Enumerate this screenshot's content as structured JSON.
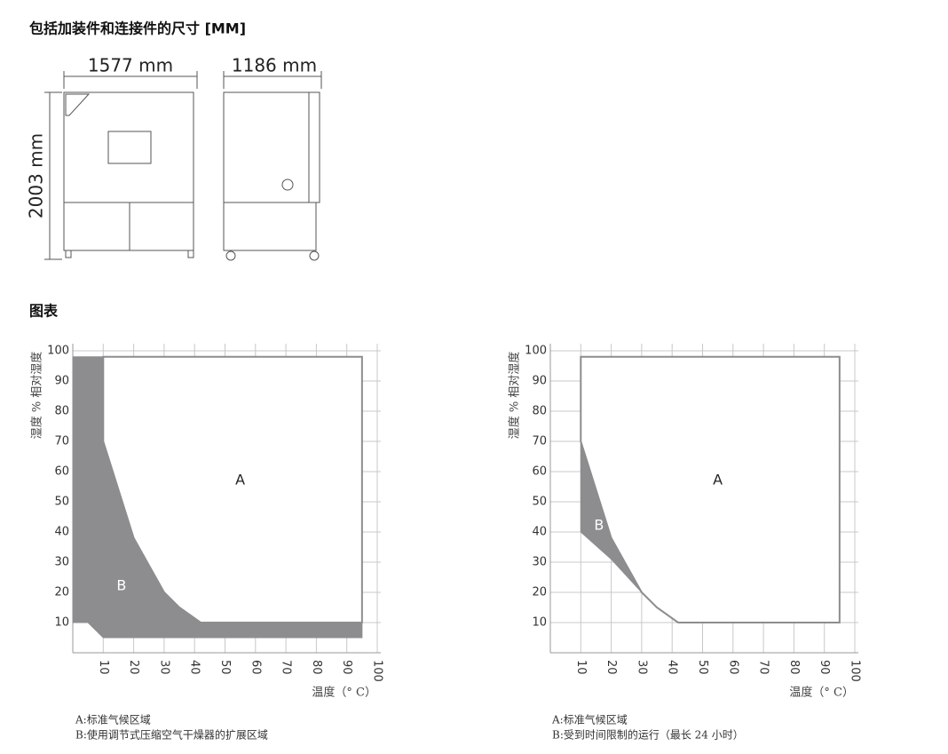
{
  "dimensions": {
    "title": "包括加装件和连接件的尺寸 [MM]",
    "width": "1577 mm",
    "depth": "1186 mm",
    "height": "2003 mm"
  },
  "diagrams_title": "图表",
  "chart_data": [
    {
      "type": "area",
      "x_label": "温度（° C）",
      "y_label": "湿度 % 相对湿度",
      "xlim": [
        0,
        100
      ],
      "ylim": [
        0,
        100
      ],
      "xticks": [
        10,
        20,
        30,
        40,
        50,
        60,
        70,
        80,
        90,
        100
      ],
      "yticks": [
        10,
        20,
        30,
        40,
        50,
        60,
        70,
        80,
        90,
        100
      ],
      "grid": true,
      "series": [
        {
          "name": "A",
          "color": "#ffffff",
          "x": [
            10,
            95,
            95,
            42,
            35,
            30,
            20,
            10
          ],
          "values": [
            98,
            98,
            10,
            10,
            15,
            20,
            38,
            70
          ]
        },
        {
          "name": "B",
          "color": "#8d8d8f",
          "x": [
            0,
            10,
            10,
            20,
            30,
            35,
            42,
            95,
            95,
            10,
            5,
            0
          ],
          "values": [
            98,
            98,
            70,
            38,
            20,
            15,
            10,
            10,
            5,
            5,
            10,
            10
          ]
        }
      ],
      "legend": [
        "A:标准气候区域",
        "B:使用调节式压缩空气干燥器的扩展区域"
      ]
    },
    {
      "type": "area",
      "x_label": "温度（° C）",
      "y_label": "湿度 % 相对湿度",
      "xlim": [
        0,
        100
      ],
      "ylim": [
        0,
        100
      ],
      "xticks": [
        10,
        20,
        30,
        40,
        50,
        60,
        70,
        80,
        90,
        100
      ],
      "yticks": [
        10,
        20,
        30,
        40,
        50,
        60,
        70,
        80,
        90,
        100
      ],
      "grid": true,
      "series": [
        {
          "name": "A",
          "color": "#ffffff",
          "x": [
            10,
            95,
            95,
            42,
            35,
            30,
            20,
            10
          ],
          "values": [
            98,
            98,
            10,
            10,
            15,
            20,
            38,
            70
          ]
        },
        {
          "name": "B",
          "color": "#8d8d8f",
          "x": [
            10,
            20,
            30,
            20,
            10
          ],
          "values": [
            70,
            38,
            20,
            31,
            40
          ]
        }
      ],
      "legend": [
        "A:标准气候区域",
        "B:受到时间限制的运行（最长 24 小时）"
      ]
    }
  ]
}
